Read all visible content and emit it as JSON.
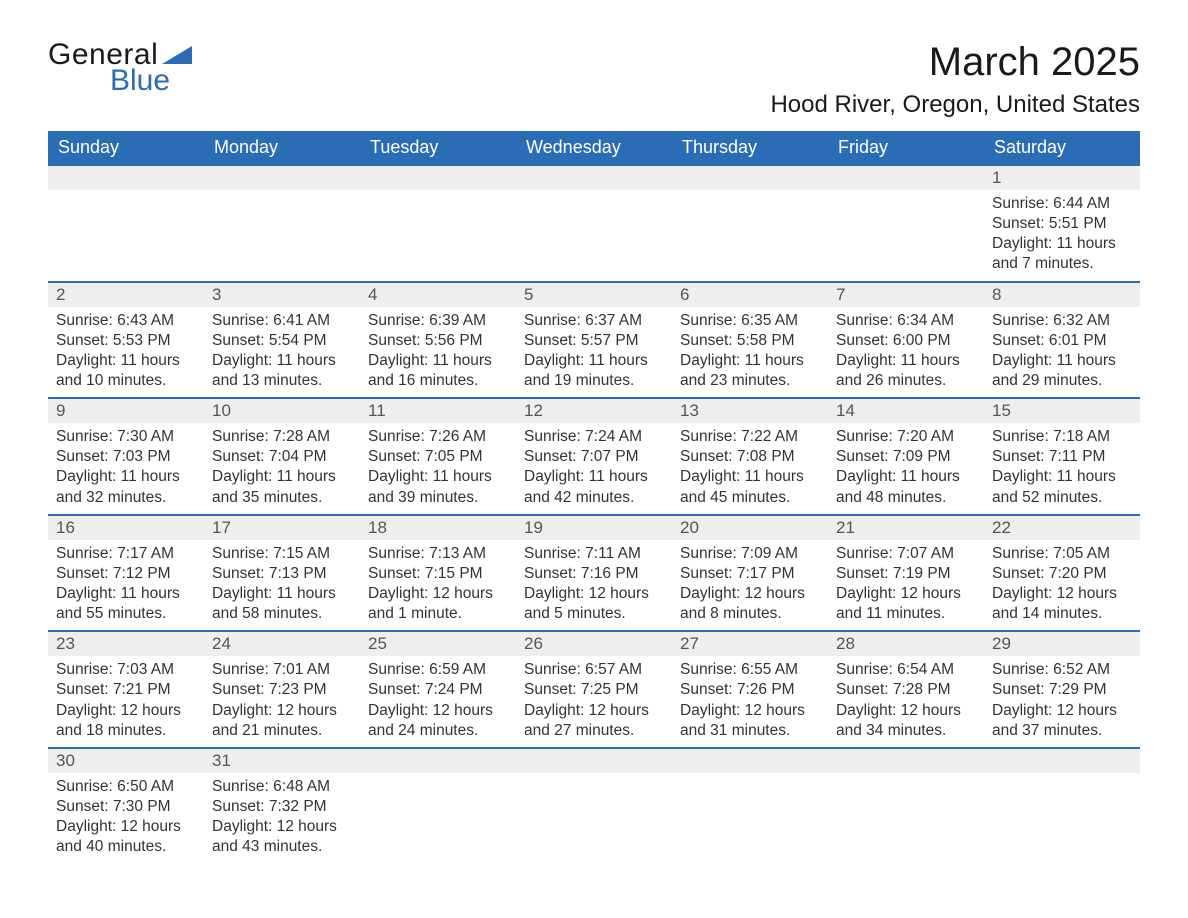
{
  "logo": {
    "text_general": "General",
    "text_blue": "Blue",
    "triangle_color": "#2a6db5"
  },
  "header": {
    "month_title": "March 2025",
    "location": "Hood River, Oregon, United States"
  },
  "colors": {
    "header_bg": "#2a6db5",
    "header_text": "#ffffff",
    "daynum_bg": "#eeeeee",
    "row_divider": "#2a6db5",
    "body_text": "#333333",
    "page_bg": "#ffffff"
  },
  "typography": {
    "month_title_fontsize": 40,
    "location_fontsize": 24,
    "weekday_fontsize": 18,
    "daynum_fontsize": 17,
    "detail_fontsize": 15.5,
    "logo_fontsize": 30
  },
  "layout": {
    "columns": 7,
    "rows": 6
  },
  "weekdays": [
    "Sunday",
    "Monday",
    "Tuesday",
    "Wednesday",
    "Thursday",
    "Friday",
    "Saturday"
  ],
  "weeks": [
    [
      null,
      null,
      null,
      null,
      null,
      null,
      {
        "n": "1",
        "sunrise": "Sunrise: 6:44 AM",
        "sunset": "Sunset: 5:51 PM",
        "day1": "Daylight: 11 hours",
        "day2": "and 7 minutes."
      }
    ],
    [
      {
        "n": "2",
        "sunrise": "Sunrise: 6:43 AM",
        "sunset": "Sunset: 5:53 PM",
        "day1": "Daylight: 11 hours",
        "day2": "and 10 minutes."
      },
      {
        "n": "3",
        "sunrise": "Sunrise: 6:41 AM",
        "sunset": "Sunset: 5:54 PM",
        "day1": "Daylight: 11 hours",
        "day2": "and 13 minutes."
      },
      {
        "n": "4",
        "sunrise": "Sunrise: 6:39 AM",
        "sunset": "Sunset: 5:56 PM",
        "day1": "Daylight: 11 hours",
        "day2": "and 16 minutes."
      },
      {
        "n": "5",
        "sunrise": "Sunrise: 6:37 AM",
        "sunset": "Sunset: 5:57 PM",
        "day1": "Daylight: 11 hours",
        "day2": "and 19 minutes."
      },
      {
        "n": "6",
        "sunrise": "Sunrise: 6:35 AM",
        "sunset": "Sunset: 5:58 PM",
        "day1": "Daylight: 11 hours",
        "day2": "and 23 minutes."
      },
      {
        "n": "7",
        "sunrise": "Sunrise: 6:34 AM",
        "sunset": "Sunset: 6:00 PM",
        "day1": "Daylight: 11 hours",
        "day2": "and 26 minutes."
      },
      {
        "n": "8",
        "sunrise": "Sunrise: 6:32 AM",
        "sunset": "Sunset: 6:01 PM",
        "day1": "Daylight: 11 hours",
        "day2": "and 29 minutes."
      }
    ],
    [
      {
        "n": "9",
        "sunrise": "Sunrise: 7:30 AM",
        "sunset": "Sunset: 7:03 PM",
        "day1": "Daylight: 11 hours",
        "day2": "and 32 minutes."
      },
      {
        "n": "10",
        "sunrise": "Sunrise: 7:28 AM",
        "sunset": "Sunset: 7:04 PM",
        "day1": "Daylight: 11 hours",
        "day2": "and 35 minutes."
      },
      {
        "n": "11",
        "sunrise": "Sunrise: 7:26 AM",
        "sunset": "Sunset: 7:05 PM",
        "day1": "Daylight: 11 hours",
        "day2": "and 39 minutes."
      },
      {
        "n": "12",
        "sunrise": "Sunrise: 7:24 AM",
        "sunset": "Sunset: 7:07 PM",
        "day1": "Daylight: 11 hours",
        "day2": "and 42 minutes."
      },
      {
        "n": "13",
        "sunrise": "Sunrise: 7:22 AM",
        "sunset": "Sunset: 7:08 PM",
        "day1": "Daylight: 11 hours",
        "day2": "and 45 minutes."
      },
      {
        "n": "14",
        "sunrise": "Sunrise: 7:20 AM",
        "sunset": "Sunset: 7:09 PM",
        "day1": "Daylight: 11 hours",
        "day2": "and 48 minutes."
      },
      {
        "n": "15",
        "sunrise": "Sunrise: 7:18 AM",
        "sunset": "Sunset: 7:11 PM",
        "day1": "Daylight: 11 hours",
        "day2": "and 52 minutes."
      }
    ],
    [
      {
        "n": "16",
        "sunrise": "Sunrise: 7:17 AM",
        "sunset": "Sunset: 7:12 PM",
        "day1": "Daylight: 11 hours",
        "day2": "and 55 minutes."
      },
      {
        "n": "17",
        "sunrise": "Sunrise: 7:15 AM",
        "sunset": "Sunset: 7:13 PM",
        "day1": "Daylight: 11 hours",
        "day2": "and 58 minutes."
      },
      {
        "n": "18",
        "sunrise": "Sunrise: 7:13 AM",
        "sunset": "Sunset: 7:15 PM",
        "day1": "Daylight: 12 hours",
        "day2": "and 1 minute."
      },
      {
        "n": "19",
        "sunrise": "Sunrise: 7:11 AM",
        "sunset": "Sunset: 7:16 PM",
        "day1": "Daylight: 12 hours",
        "day2": "and 5 minutes."
      },
      {
        "n": "20",
        "sunrise": "Sunrise: 7:09 AM",
        "sunset": "Sunset: 7:17 PM",
        "day1": "Daylight: 12 hours",
        "day2": "and 8 minutes."
      },
      {
        "n": "21",
        "sunrise": "Sunrise: 7:07 AM",
        "sunset": "Sunset: 7:19 PM",
        "day1": "Daylight: 12 hours",
        "day2": "and 11 minutes."
      },
      {
        "n": "22",
        "sunrise": "Sunrise: 7:05 AM",
        "sunset": "Sunset: 7:20 PM",
        "day1": "Daylight: 12 hours",
        "day2": "and 14 minutes."
      }
    ],
    [
      {
        "n": "23",
        "sunrise": "Sunrise: 7:03 AM",
        "sunset": "Sunset: 7:21 PM",
        "day1": "Daylight: 12 hours",
        "day2": "and 18 minutes."
      },
      {
        "n": "24",
        "sunrise": "Sunrise: 7:01 AM",
        "sunset": "Sunset: 7:23 PM",
        "day1": "Daylight: 12 hours",
        "day2": "and 21 minutes."
      },
      {
        "n": "25",
        "sunrise": "Sunrise: 6:59 AM",
        "sunset": "Sunset: 7:24 PM",
        "day1": "Daylight: 12 hours",
        "day2": "and 24 minutes."
      },
      {
        "n": "26",
        "sunrise": "Sunrise: 6:57 AM",
        "sunset": "Sunset: 7:25 PM",
        "day1": "Daylight: 12 hours",
        "day2": "and 27 minutes."
      },
      {
        "n": "27",
        "sunrise": "Sunrise: 6:55 AM",
        "sunset": "Sunset: 7:26 PM",
        "day1": "Daylight: 12 hours",
        "day2": "and 31 minutes."
      },
      {
        "n": "28",
        "sunrise": "Sunrise: 6:54 AM",
        "sunset": "Sunset: 7:28 PM",
        "day1": "Daylight: 12 hours",
        "day2": "and 34 minutes."
      },
      {
        "n": "29",
        "sunrise": "Sunrise: 6:52 AM",
        "sunset": "Sunset: 7:29 PM",
        "day1": "Daylight: 12 hours",
        "day2": "and 37 minutes."
      }
    ],
    [
      {
        "n": "30",
        "sunrise": "Sunrise: 6:50 AM",
        "sunset": "Sunset: 7:30 PM",
        "day1": "Daylight: 12 hours",
        "day2": "and 40 minutes."
      },
      {
        "n": "31",
        "sunrise": "Sunrise: 6:48 AM",
        "sunset": "Sunset: 7:32 PM",
        "day1": "Daylight: 12 hours",
        "day2": "and 43 minutes."
      },
      null,
      null,
      null,
      null,
      null
    ]
  ]
}
